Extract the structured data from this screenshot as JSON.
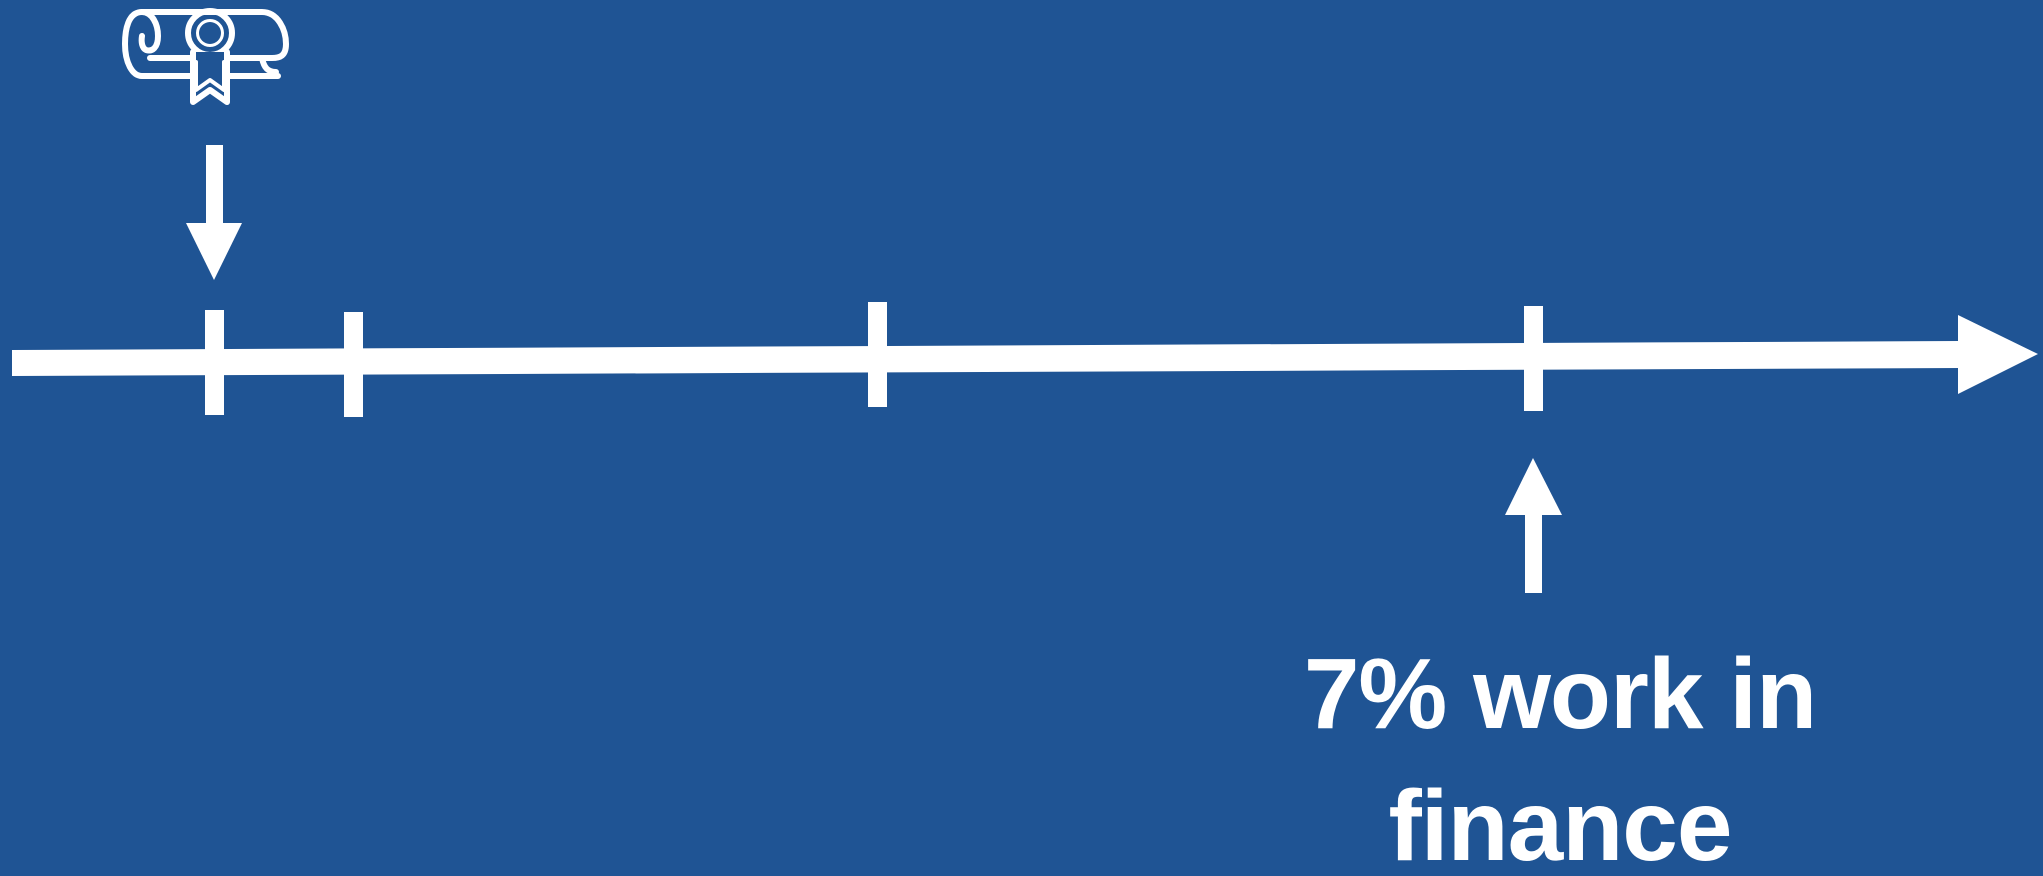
{
  "colors": {
    "background": "#1f5494",
    "foreground": "#ffffff"
  },
  "timeline": {
    "arrowhead": "right-arrow-icon",
    "tick_count": 4
  },
  "start_marker": {
    "icon": "diploma-icon",
    "pointer": "down-arrow-icon"
  },
  "end_marker": {
    "pointer": "up-arrow-icon",
    "caption": "7% work in finance"
  }
}
